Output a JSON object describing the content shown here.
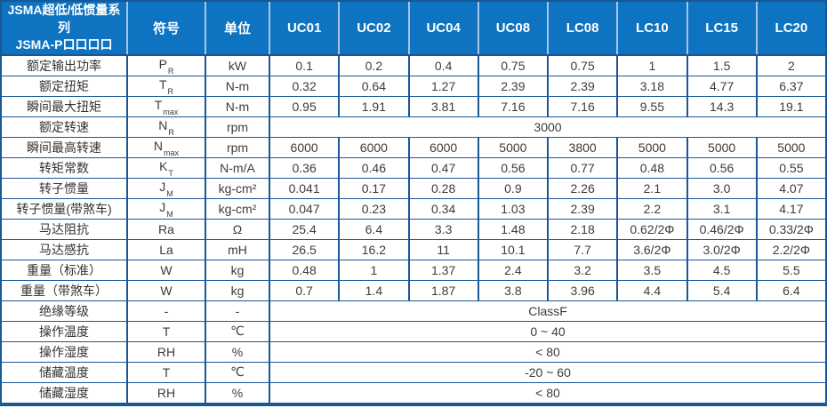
{
  "colors": {
    "header_bg": "#0E74C1",
    "header_text": "#FFFFFF",
    "grid_border": "#1A5796",
    "header_divider": "#A8C4E4",
    "body_text": "#3C3C3C"
  },
  "table": {
    "title_lines": [
      "JSMA超低/低惯量系列",
      "JSMA-P口口口口"
    ],
    "symbol_header": "符号",
    "unit_header": "单位",
    "models": [
      "UC01",
      "UC02",
      "UC04",
      "UC08",
      "LC08",
      "LC10",
      "LC15",
      "LC20"
    ],
    "rows": [
      {
        "label": "额定输出功率",
        "sym": "P",
        "sub": "R",
        "unit": "kW",
        "values": [
          "0.1",
          "0.2",
          "0.4",
          "0.75",
          "0.75",
          "1",
          "1.5",
          "2"
        ]
      },
      {
        "label": "额定扭矩",
        "sym": "T",
        "sub": "R",
        "unit": "N-m",
        "values": [
          "0.32",
          "0.64",
          "1.27",
          "2.39",
          "2.39",
          "3.18",
          "4.77",
          "6.37"
        ]
      },
      {
        "label": "瞬间最大扭矩",
        "sym": "T",
        "sub": "max",
        "unit": "N-m",
        "values": [
          "0.95",
          "1.91",
          "3.81",
          "7.16",
          "7.16",
          "9.55",
          "14.3",
          "19.1"
        ]
      },
      {
        "label": "额定转速",
        "sym": "N",
        "sub": "R",
        "unit": "rpm",
        "merged": "3000"
      },
      {
        "label": "瞬间最高转速",
        "sym": "N",
        "sub": "max",
        "unit": "rpm",
        "values": [
          "6000",
          "6000",
          "6000",
          "5000",
          "3800",
          "5000",
          "5000",
          "5000"
        ]
      },
      {
        "label": "转矩常数",
        "sym": "K",
        "sub": "T",
        "unit": "N-m/A",
        "values": [
          "0.36",
          "0.46",
          "0.47",
          "0.56",
          "0.77",
          "0.48",
          "0.56",
          "0.55"
        ]
      },
      {
        "label": "转子惯量",
        "sym": "J",
        "sub": "M",
        "unit": "kg-cm²",
        "values": [
          "0.041",
          "0.17",
          "0.28",
          "0.9",
          "2.26",
          "2.1",
          "3.0",
          "4.07"
        ]
      },
      {
        "label": "转子惯量(带煞车)",
        "sym": "J",
        "sub": "M",
        "unit": "kg-cm²",
        "values": [
          "0.047",
          "0.23",
          "0.34",
          "1.03",
          "2.39",
          "2.2",
          "3.1",
          "4.17"
        ]
      },
      {
        "label": "马达阻抗",
        "sym": "Ra",
        "sub": "",
        "unit": "Ω",
        "values": [
          "25.4",
          "6.4",
          "3.3",
          "1.48",
          "2.18",
          "0.62/2Φ",
          "0.46/2Φ",
          "0.33/2Φ"
        ]
      },
      {
        "label": "马达感抗",
        "sym": "La",
        "sub": "",
        "unit": "mH",
        "values": [
          "26.5",
          "16.2",
          "11",
          "10.1",
          "7.7",
          "3.6/2Φ",
          "3.0/2Φ",
          "2.2/2Φ"
        ]
      },
      {
        "label": "重量（标准）",
        "sym": "W",
        "sub": "",
        "unit": "kg",
        "values": [
          "0.48",
          "1",
          "1.37",
          "2.4",
          "3.2",
          "3.5",
          "4.5",
          "5.5"
        ]
      },
      {
        "label": "重量（带煞车）",
        "sym": "W",
        "sub": "",
        "unit": "kg",
        "values": [
          "0.7",
          "1.4",
          "1.87",
          "3.8",
          "3.96",
          "4.4",
          "5.4",
          "6.4"
        ]
      },
      {
        "label": "绝缘等级",
        "sym": "-",
        "sub": "",
        "unit": "-",
        "merged": "ClassF"
      },
      {
        "label": "操作温度",
        "sym": "T",
        "sub": "",
        "unit": "℃",
        "merged": "0 ~ 40"
      },
      {
        "label": "操作湿度",
        "sym": "RH",
        "sub": "",
        "unit": "%",
        "merged": "< 80"
      },
      {
        "label": "储藏温度",
        "sym": "T",
        "sub": "",
        "unit": "℃",
        "merged": "-20 ~ 60"
      },
      {
        "label": "储藏湿度",
        "sym": "RH",
        "sub": "",
        "unit": "%",
        "merged": "< 80"
      }
    ]
  }
}
